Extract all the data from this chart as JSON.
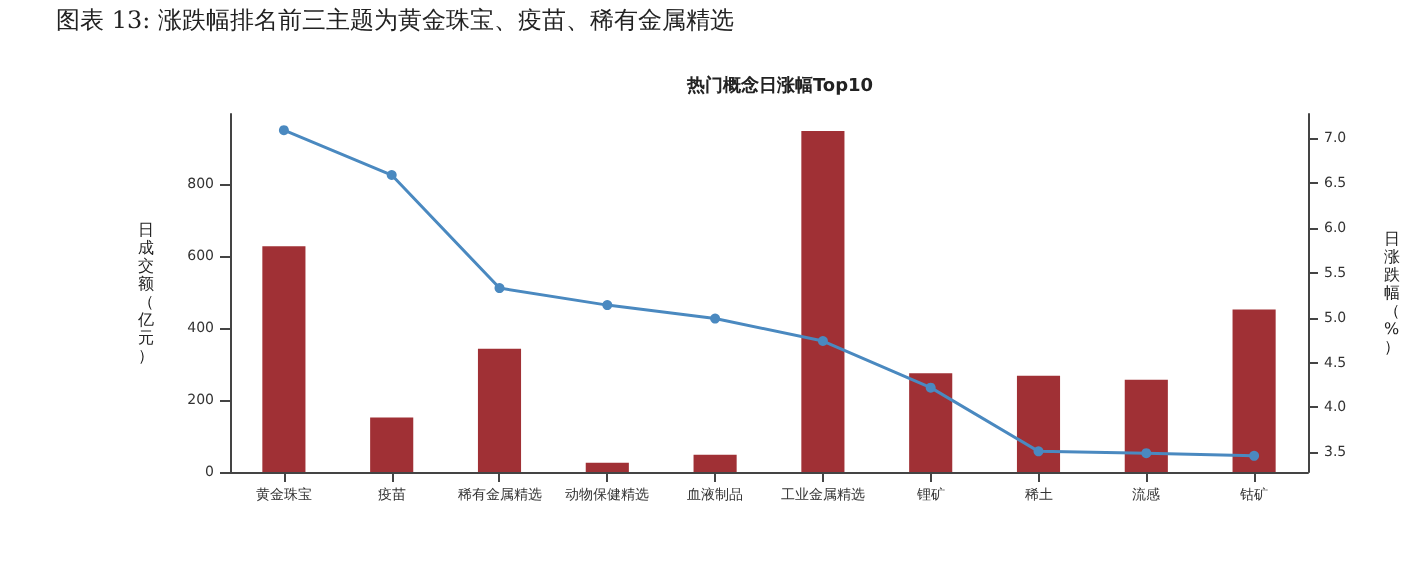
{
  "chart_data": {
    "type": "bar",
    "title": "热门概念日涨幅Top10",
    "annotations": [
      "图表 13: 涨跌幅排名前三主题为黄金珠宝、疫苗、稀有金属精选"
    ],
    "categories": [
      "黄金珠宝",
      "疫苗",
      "稀有金属精选",
      "动物保健精选",
      "血液制品",
      "工业金属精选",
      "锂矿",
      "稀土",
      "流感",
      "钴矿"
    ],
    "series": [
      {
        "color": "#a03035",
        "values": [
          626,
          151,
          342,
          26,
          48,
          946,
          274,
          267,
          256,
          451
        ]
      },
      {
        "type": "line",
        "axis": "y2",
        "color": "#4a89c0",
        "values": [
          7.09,
          6.59,
          5.33,
          5.14,
          4.99,
          4.74,
          4.22,
          3.51,
          3.49,
          3.46
        ]
      }
    ],
    "ylabel": "日成交额（亿元）",
    "y2label": "日涨跌幅（%）",
    "ylim": [
      0,
      993
    ],
    "yticks": [
      0,
      200,
      400,
      600,
      800
    ],
    "y2lim": [
      3.28,
      7.27
    ],
    "y2ticks": [
      3.5,
      {
        "value": 4,
        "label": "4.0"
      },
      4.5,
      {
        "value": 5,
        "label": "5.0"
      },
      5.5,
      {
        "value": 6,
        "label": "6.0"
      },
      6.5,
      {
        "value": 7,
        "label": "7.0"
      }
    ],
    "grid": false,
    "marker": "circle",
    "line_style": "solid"
  }
}
